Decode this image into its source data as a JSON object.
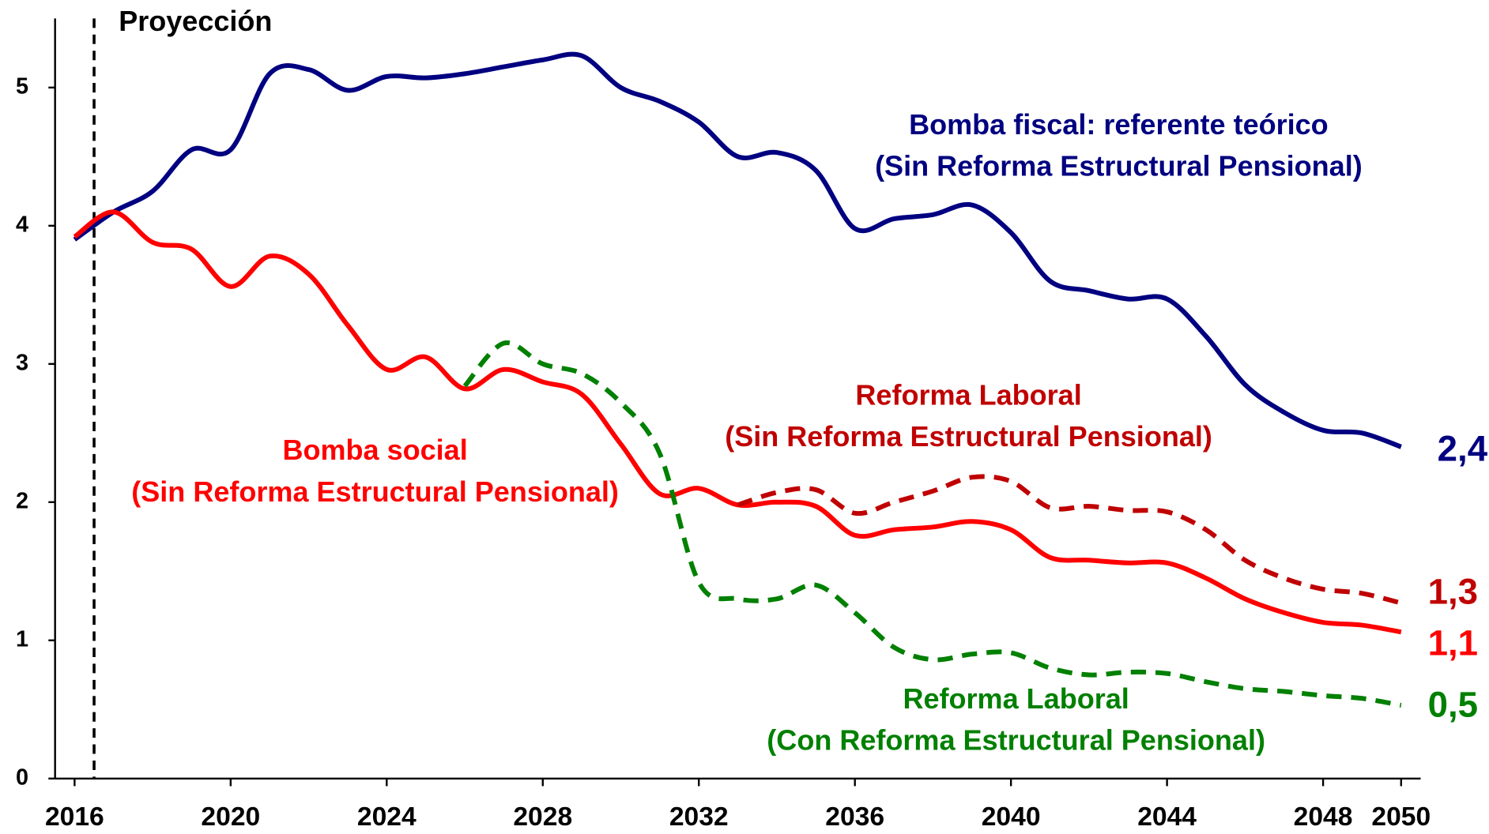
{
  "chart_data": {
    "type": "line",
    "x": [
      2016,
      2017,
      2018,
      2019,
      2020,
      2021,
      2022,
      2023,
      2024,
      2025,
      2026,
      2027,
      2028,
      2029,
      2030,
      2031,
      2032,
      2033,
      2034,
      2035,
      2036,
      2037,
      2038,
      2039,
      2040,
      2041,
      2042,
      2043,
      2044,
      2045,
      2046,
      2047,
      2048,
      2049,
      2050
    ],
    "xlim": [
      2015.5,
      2050.5
    ],
    "xticks": [
      2016,
      2020,
      2024,
      2028,
      2032,
      2036,
      2040,
      2044,
      2048,
      2050
    ],
    "ylim": [
      0,
      5.5
    ],
    "yticks": [
      0,
      1,
      2,
      3,
      4,
      5
    ],
    "projection_start": 2016.5,
    "projection_label": "Proyección",
    "series": [
      {
        "name": "Bomba fiscal: referente teórico",
        "subname": "(Sin Reforma Estructural Pensional)",
        "color": "#000080",
        "dashed": false,
        "end_label": "2,4",
        "values": [
          3.9,
          4.1,
          4.25,
          4.55,
          4.55,
          5.1,
          5.13,
          4.98,
          5.08,
          5.07,
          5.1,
          5.15,
          5.2,
          5.23,
          5.0,
          4.9,
          4.75,
          4.5,
          4.53,
          4.4,
          3.98,
          4.05,
          4.08,
          4.15,
          3.95,
          3.6,
          3.53,
          3.47,
          3.47,
          3.2,
          2.85,
          2.65,
          2.52,
          2.5,
          2.4
        ]
      },
      {
        "name": "Bomba social",
        "subname": "(Sin Reforma Estructural Pensional)",
        "color": "#ff0000",
        "dashed": false,
        "end_label": "1,1",
        "values": [
          3.92,
          4.1,
          3.88,
          3.83,
          3.56,
          3.78,
          3.65,
          3.28,
          2.96,
          3.05,
          2.82,
          2.96,
          2.87,
          2.78,
          2.42,
          2.06,
          2.1,
          1.98,
          2.0,
          1.97,
          1.76,
          1.8,
          1.82,
          1.86,
          1.8,
          1.6,
          1.58,
          1.56,
          1.56,
          1.45,
          1.3,
          1.2,
          1.13,
          1.11,
          1.06
        ]
      },
      {
        "name": "Reforma Laboral",
        "subname": "(Sin Reforma Estructural Pensional)",
        "color": "#c00000",
        "dashed": true,
        "end_label": "1,3",
        "values": [
          null,
          null,
          null,
          null,
          null,
          null,
          null,
          null,
          null,
          null,
          null,
          null,
          null,
          null,
          null,
          null,
          null,
          1.98,
          2.07,
          2.09,
          1.92,
          2.0,
          2.08,
          2.18,
          2.15,
          1.96,
          1.97,
          1.94,
          1.93,
          1.8,
          1.58,
          1.45,
          1.37,
          1.34,
          1.27
        ]
      },
      {
        "name": "Reforma Laboral",
        "subname": "(Con Reforma Estructural Pensional)",
        "color": "#008000",
        "dashed": true,
        "end_label": "0,5",
        "values": [
          null,
          null,
          null,
          null,
          null,
          null,
          null,
          null,
          null,
          null,
          2.84,
          3.15,
          3.0,
          2.93,
          2.72,
          2.35,
          1.42,
          1.3,
          1.3,
          1.4,
          1.2,
          0.95,
          0.86,
          0.9,
          0.91,
          0.8,
          0.75,
          0.77,
          0.76,
          0.7,
          0.65,
          0.63,
          0.6,
          0.58,
          0.53
        ]
      }
    ]
  }
}
